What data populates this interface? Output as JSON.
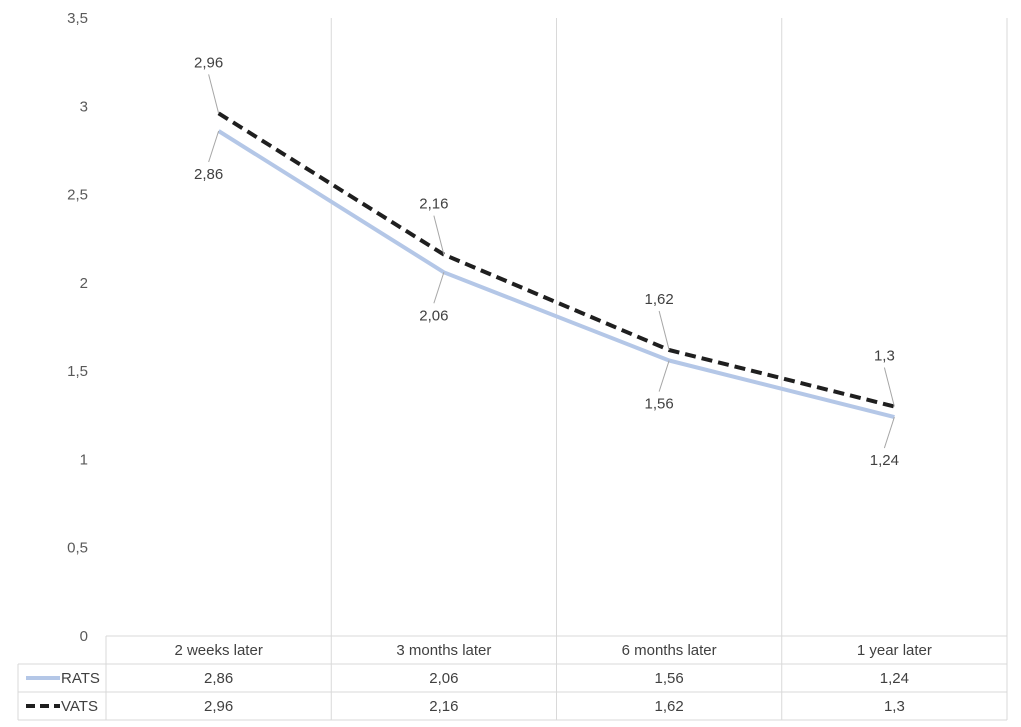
{
  "chart_data": {
    "type": "line",
    "categories": [
      "2 weeks later",
      "3 months later",
      "6 months later",
      "1 year later"
    ],
    "series": [
      {
        "name": "RATS",
        "values": [
          2.86,
          2.06,
          1.56,
          1.24
        ],
        "value_labels": [
          "2,86",
          "2,06",
          "1,56",
          "1,24"
        ],
        "color": "#b4c7e7",
        "style": "solid"
      },
      {
        "name": "VATS",
        "values": [
          2.96,
          2.16,
          1.62,
          1.3
        ],
        "value_labels": [
          "2,96",
          "2,16",
          "1,62",
          "1,3"
        ],
        "color": "#1f1f1f",
        "style": "dashed"
      }
    ],
    "ylim": [
      0,
      3.5
    ],
    "yticks": [
      0,
      0.5,
      1,
      1.5,
      2,
      2.5,
      3,
      3.5
    ],
    "ytick_labels": [
      "0",
      "0,5",
      "1",
      "1,5",
      "2",
      "2,5",
      "3",
      "3,5"
    ],
    "grid": "vertical",
    "legend": "data-table",
    "title": "",
    "xlabel": "",
    "ylabel": ""
  }
}
